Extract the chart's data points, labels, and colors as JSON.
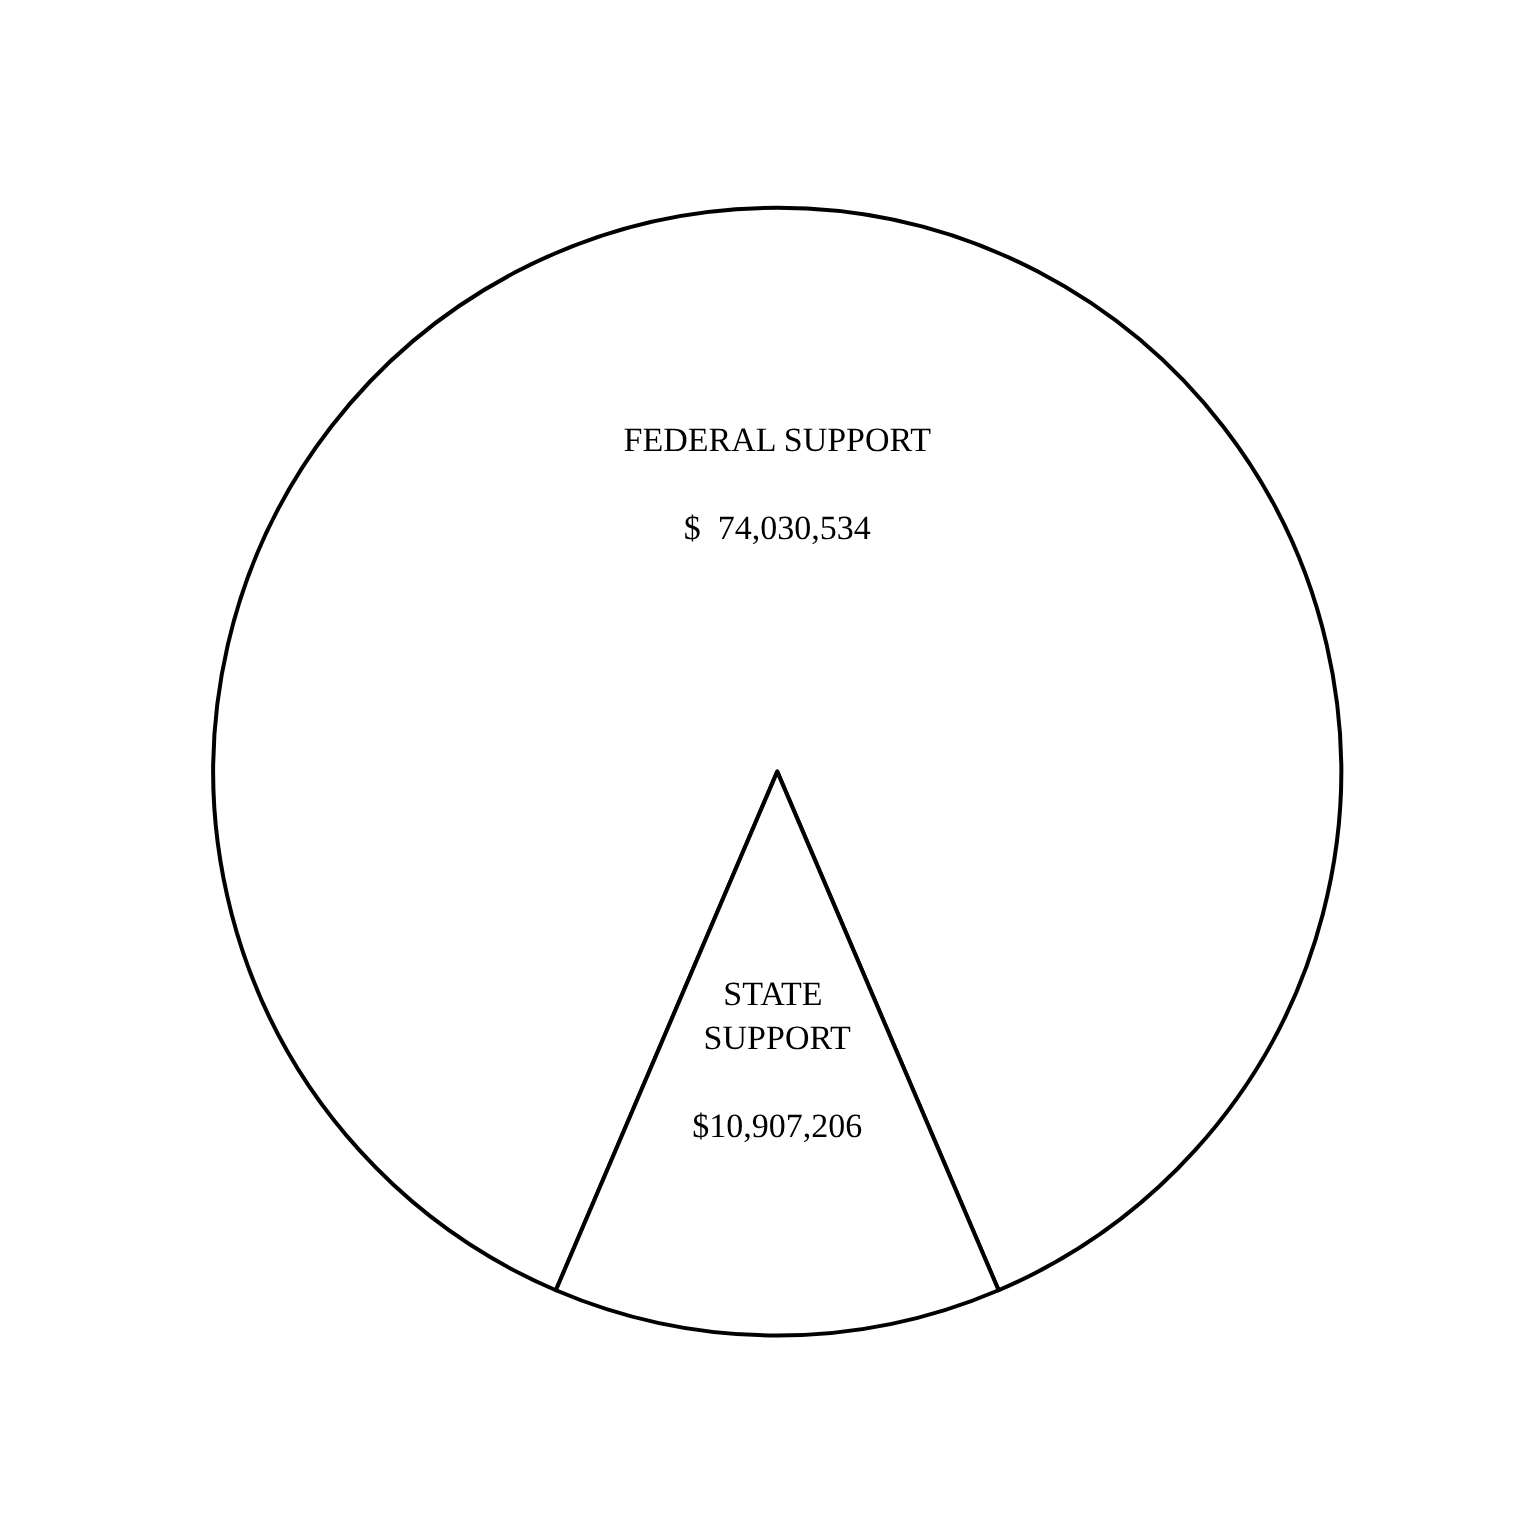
{
  "chart_data": {
    "type": "pie",
    "categories": [
      "FEDERAL SUPPORT",
      "STATE SUPPORT"
    ],
    "values": [
      74030534,
      10907206
    ],
    "value_labels": [
      "$  74,030,534",
      "$10,907,206"
    ],
    "colors": [
      "#ffffff",
      "#ffffff"
    ]
  }
}
